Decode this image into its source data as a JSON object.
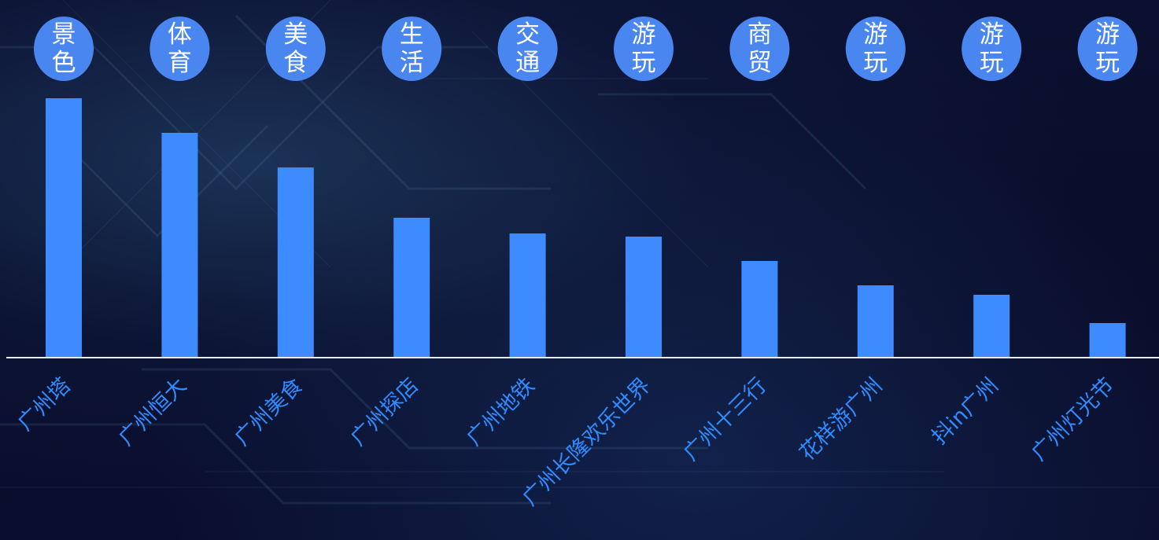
{
  "chart_data": {
    "type": "bar",
    "categories": [
      "广州塔",
      "广州恒大",
      "广州美食",
      "广州探店",
      "广州地铁",
      "广州长隆欢乐世界",
      "广州十三行",
      "花样游广州",
      "抖in广州",
      "广州灯光节"
    ],
    "tags": [
      [
        "景",
        "色"
      ],
      [
        "体",
        "育"
      ],
      [
        "美",
        "食"
      ],
      [
        "生",
        "活"
      ],
      [
        "交",
        "通"
      ],
      [
        "游",
        "玩"
      ],
      [
        "商",
        "贸"
      ],
      [
        "游",
        "玩"
      ],
      [
        "游",
        "玩"
      ],
      [
        "游",
        "玩"
      ]
    ],
    "values": [
      330,
      286,
      242,
      178,
      158,
      154,
      123,
      92,
      80,
      44
    ],
    "ylim": [
      0,
      340
    ],
    "grid": false,
    "legend": "none"
  },
  "colors": {
    "bar": "#3d8bff",
    "badge": "#4a86f0",
    "label": "#2f8cff",
    "axis": "#e6ebf5",
    "background": "#0a0d2a"
  }
}
